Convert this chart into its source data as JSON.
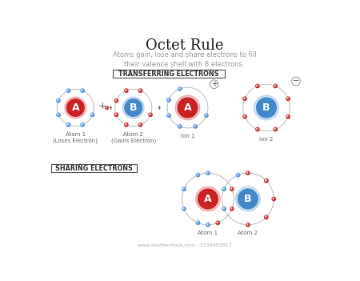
{
  "title": "Octet Rule",
  "subtitle": "Atoms gain, lose and share electrons to fill\ntheir valence shell with 8 electrons.",
  "title_color": "#222222",
  "subtitle_color": "#999999",
  "bg_color": "#ffffff",
  "section1_label": "TRANSFERRING ELECTRONS",
  "section2_label": "SHARING ELECTRONS",
  "nucleus_red": "#cc2222",
  "nucleus_blue": "#4488cc",
  "orbit_color": "#bbbbbb",
  "dot_blue": "#5599dd",
  "dot_red": "#cc3333",
  "atom1_label": "Atom 1\n(Loses Electron)",
  "atom2_label": "Atom 2\n(Gains Electron)",
  "ion1_label": "Ion 1",
  "ion2_label": "Ion 2",
  "share_atom1_label": "Atom 1",
  "share_atom2_label": "Atom 2",
  "footer": "www.shutterstock.com · 2336983817"
}
